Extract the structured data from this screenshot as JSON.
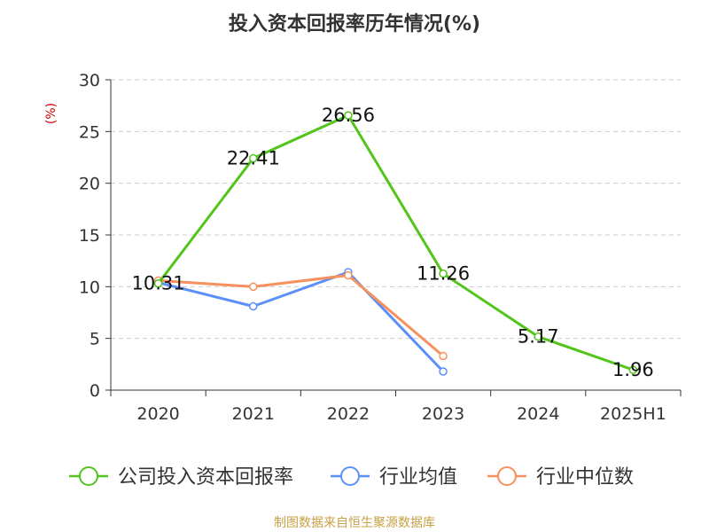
{
  "chart_data": {
    "type": "line",
    "title": "投入资本回报率历年情况(%)",
    "ylabel": "(%)",
    "xlabel": "",
    "categories": [
      "2020",
      "2021",
      "2022",
      "2023",
      "2024",
      "2025H1"
    ],
    "ylim": [
      0,
      30
    ],
    "yticks": [
      "0",
      "5",
      "10",
      "15",
      "20",
      "25",
      "30"
    ],
    "grid": true,
    "legend_position": "bottom",
    "series": [
      {
        "name": "公司投入资本回报率",
        "color": "#52c41a",
        "values": [
          10.31,
          22.41,
          26.56,
          11.26,
          5.17,
          1.96
        ],
        "labels": [
          "10.31",
          "22.41",
          "26.56",
          "11.26",
          "5.17",
          "1.96"
        ]
      },
      {
        "name": "行业均值",
        "color": "#5b8ff9",
        "values": [
          10.4,
          8.1,
          11.4,
          1.8,
          null,
          null
        ]
      },
      {
        "name": "行业中位数",
        "color": "#f6905e",
        "values": [
          10.6,
          10.0,
          11.1,
          3.3,
          null,
          null
        ]
      }
    ],
    "source": "制图数据来自恒生聚源数据库",
    "source_color": "#c8a046"
  }
}
